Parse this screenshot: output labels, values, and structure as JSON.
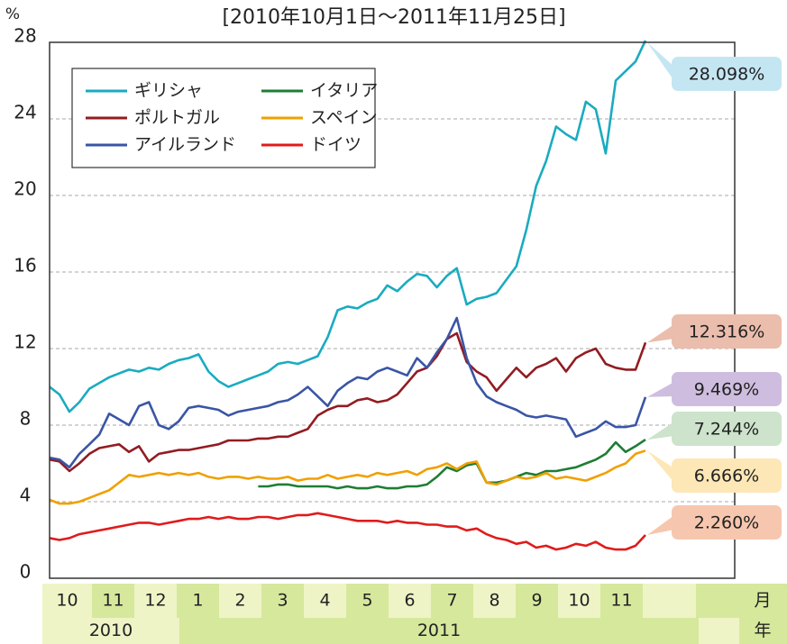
{
  "chart_data": {
    "type": "line",
    "title": "[2010年10月1日～2011年11月25日]",
    "y_unit": "%",
    "ylim": [
      0,
      28
    ],
    "yticks": [
      0,
      4,
      8,
      12,
      16,
      20,
      24,
      28
    ],
    "grid": true,
    "months": [
      "10",
      "11",
      "12",
      "1",
      "2",
      "3",
      "4",
      "5",
      "6",
      "7",
      "8",
      "9",
      "10",
      "11"
    ],
    "month_unit": "月",
    "years": [
      "2010",
      "2011"
    ],
    "year_unit": "年",
    "legend": "upper left",
    "series": [
      {
        "name": "ギリシャ",
        "color": "#1aabc0",
        "end_label": "28.098%",
        "label_color": "#c4e6f3",
        "values": [
          10.0,
          9.6,
          8.7,
          9.2,
          9.9,
          10.2,
          10.5,
          10.7,
          10.9,
          10.8,
          11.0,
          10.9,
          11.2,
          11.4,
          11.5,
          11.7,
          10.8,
          10.3,
          10.0,
          10.2,
          10.4,
          10.6,
          10.8,
          11.2,
          11.3,
          11.2,
          11.4,
          11.6,
          12.6,
          14.0,
          14.2,
          14.1,
          14.4,
          14.6,
          15.3,
          15.0,
          15.5,
          15.9,
          15.8,
          15.2,
          15.8,
          16.2,
          14.3,
          14.6,
          14.7,
          14.9,
          15.6,
          16.3,
          18.2,
          20.5,
          21.8,
          23.6,
          23.2,
          22.9,
          24.9,
          24.5,
          22.2,
          26.0,
          26.5,
          27.0,
          28.098
        ]
      },
      {
        "name": "ポルトガル",
        "color": "#921c22",
        "end_label": "12.316%",
        "label_color": "#ebbdad",
        "values": [
          6.2,
          6.1,
          5.6,
          6.0,
          6.5,
          6.8,
          6.9,
          7.0,
          6.6,
          6.9,
          6.1,
          6.5,
          6.6,
          6.7,
          6.7,
          6.8,
          6.9,
          7.0,
          7.2,
          7.2,
          7.2,
          7.3,
          7.3,
          7.4,
          7.4,
          7.6,
          7.8,
          8.5,
          8.8,
          9.0,
          9.0,
          9.3,
          9.4,
          9.2,
          9.3,
          9.6,
          10.2,
          10.8,
          11.0,
          11.6,
          12.5,
          12.8,
          11.3,
          10.8,
          10.5,
          9.8,
          10.4,
          11.0,
          10.5,
          11.0,
          11.2,
          11.5,
          10.8,
          11.5,
          11.8,
          12.0,
          11.2,
          11.0,
          10.9,
          10.9,
          12.316
        ]
      },
      {
        "name": "アイルランド",
        "color": "#3a55a5",
        "end_label": "9.469%",
        "label_color": "#cfbde0",
        "values": [
          6.3,
          6.2,
          5.8,
          6.5,
          7.0,
          7.5,
          8.6,
          8.3,
          8.0,
          9.0,
          9.2,
          8.0,
          7.8,
          8.2,
          8.9,
          9.0,
          8.9,
          8.8,
          8.5,
          8.7,
          8.8,
          8.9,
          9.0,
          9.2,
          9.3,
          9.6,
          10.0,
          9.5,
          9.0,
          9.8,
          10.2,
          10.5,
          10.4,
          10.8,
          11.0,
          10.8,
          10.6,
          11.5,
          11.0,
          11.8,
          12.5,
          13.6,
          11.5,
          10.2,
          9.5,
          9.2,
          9.0,
          8.8,
          8.5,
          8.4,
          8.5,
          8.4,
          8.3,
          7.4,
          7.6,
          7.8,
          8.2,
          7.9,
          7.9,
          8.0,
          9.469
        ]
      },
      {
        "name": "イタリア",
        "color": "#1e7d34",
        "end_label": "7.244%",
        "label_color": "#cde3cc",
        "values": [
          null,
          null,
          null,
          null,
          null,
          null,
          null,
          null,
          null,
          null,
          null,
          null,
          null,
          null,
          null,
          null,
          null,
          null,
          null,
          null,
          null,
          4.8,
          4.8,
          4.9,
          4.9,
          4.8,
          4.8,
          4.8,
          4.8,
          4.7,
          4.8,
          4.7,
          4.7,
          4.8,
          4.7,
          4.7,
          4.8,
          4.8,
          4.9,
          5.3,
          5.8,
          5.6,
          5.9,
          6.0,
          5.0,
          5.0,
          5.1,
          5.3,
          5.5,
          5.4,
          5.6,
          5.6,
          5.7,
          5.8,
          6.0,
          6.2,
          6.5,
          7.1,
          6.6,
          6.9,
          7.244
        ]
      },
      {
        "name": "スペイン",
        "color": "#f0a000",
        "end_label": "6.666%",
        "label_color": "#fde7b6",
        "values": [
          4.1,
          3.9,
          3.9,
          4.0,
          4.2,
          4.4,
          4.6,
          5.0,
          5.4,
          5.3,
          5.4,
          5.5,
          5.4,
          5.5,
          5.4,
          5.5,
          5.3,
          5.2,
          5.3,
          5.3,
          5.2,
          5.3,
          5.2,
          5.2,
          5.3,
          5.1,
          5.2,
          5.2,
          5.4,
          5.2,
          5.3,
          5.4,
          5.3,
          5.5,
          5.4,
          5.5,
          5.6,
          5.4,
          5.7,
          5.8,
          6.0,
          5.7,
          6.0,
          6.1,
          5.0,
          4.9,
          5.1,
          5.3,
          5.2,
          5.3,
          5.5,
          5.2,
          5.3,
          5.2,
          5.1,
          5.3,
          5.5,
          5.8,
          6.0,
          6.5,
          6.666
        ]
      },
      {
        "name": "ドイツ",
        "color": "#e01b1b",
        "end_label": "2.260%",
        "label_color": "#f6c7ae",
        "values": [
          2.1,
          2.0,
          2.1,
          2.3,
          2.4,
          2.5,
          2.6,
          2.7,
          2.8,
          2.9,
          2.9,
          2.8,
          2.9,
          3.0,
          3.1,
          3.1,
          3.2,
          3.1,
          3.2,
          3.1,
          3.1,
          3.2,
          3.2,
          3.1,
          3.2,
          3.3,
          3.3,
          3.4,
          3.3,
          3.2,
          3.1,
          3.0,
          3.0,
          3.0,
          2.9,
          3.0,
          2.9,
          2.9,
          2.8,
          2.8,
          2.7,
          2.7,
          2.5,
          2.6,
          2.3,
          2.1,
          2.0,
          1.8,
          1.9,
          1.6,
          1.7,
          1.5,
          1.6,
          1.8,
          1.7,
          1.9,
          1.6,
          1.5,
          1.5,
          1.7,
          2.26
        ]
      }
    ]
  }
}
